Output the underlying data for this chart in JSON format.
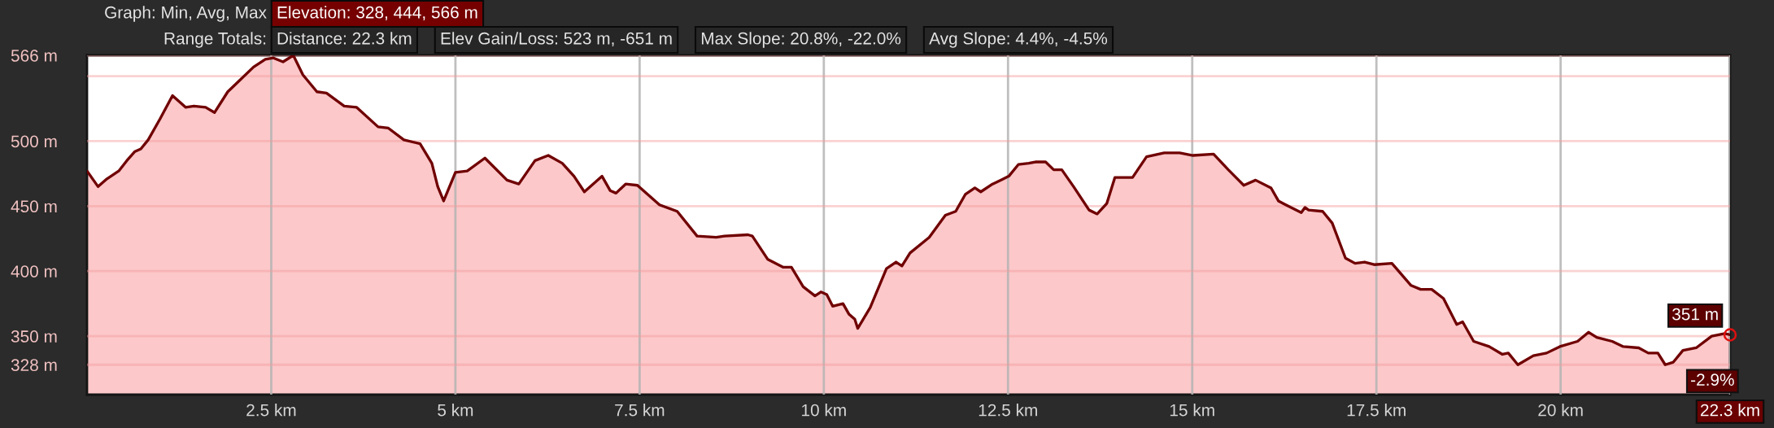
{
  "chart_data": {
    "type": "area",
    "color": "#700000",
    "x": [
      0,
      0.15,
      0.27,
      0.43,
      0.54,
      0.65,
      0.73,
      0.83,
      0.99,
      1.16,
      1.34,
      1.45,
      1.61,
      1.73,
      1.91,
      2.04,
      2.26,
      2.42,
      2.53,
      2.66,
      2.8,
      2.93,
      3.12,
      3.25,
      3.49,
      3.66,
      3.95,
      4.09,
      4.3,
      4.52,
      4.68,
      4.76,
      4.84,
      5.0,
      5.16,
      5.4,
      5.7,
      5.86,
      6.08,
      6.26,
      6.45,
      6.61,
      6.75,
      6.99,
      7.1,
      7.18,
      7.31,
      7.47,
      7.77,
      8.01,
      8.28,
      8.54,
      8.65,
      8.97,
      9.03,
      9.24,
      9.45,
      9.56,
      9.72,
      9.88,
      9.96,
      10.04,
      10.12,
      10.26,
      10.34,
      10.42,
      10.46,
      10.63,
      10.85,
      10.98,
      11.06,
      11.17,
      11.43,
      11.65,
      11.79,
      11.92,
      12.05,
      12.13,
      12.29,
      12.4,
      12.51,
      12.64,
      12.78,
      12.88,
      13.01,
      13.12,
      13.23,
      13.39,
      13.6,
      13.71,
      13.84,
      13.95,
      14.19,
      14.38,
      14.62,
      14.83,
      15.01,
      15.29,
      15.49,
      15.7,
      15.86,
      16.07,
      16.17,
      16.27,
      16.48,
      16.53,
      16.58,
      16.77,
      16.9,
      17.08,
      17.21,
      17.34,
      17.47,
      17.71,
      17.97,
      18.1,
      18.25,
      18.41,
      18.59,
      18.67,
      18.82,
      19.03,
      19.21,
      19.29,
      19.42,
      19.63,
      19.81,
      19.99,
      20.23,
      20.38,
      20.49,
      20.7,
      20.85,
      21.06,
      21.19,
      21.32,
      21.42,
      21.53,
      21.66,
      21.84,
      22.05,
      22.23,
      22.3
    ],
    "values": [
      477,
      465,
      471,
      477,
      485,
      492,
      494,
      501,
      517,
      535,
      526,
      527,
      526,
      522,
      538,
      545,
      557,
      563,
      564,
      561,
      566,
      551,
      538,
      537,
      527,
      526,
      511,
      510,
      501,
      498,
      483,
      465,
      454,
      476,
      477,
      487,
      470,
      467,
      485,
      489,
      483,
      473,
      461,
      473,
      462,
      460,
      467,
      466,
      451,
      446,
      427,
      426,
      427,
      428,
      427,
      409,
      403,
      403,
      388,
      381,
      384,
      382,
      373,
      375,
      367,
      363,
      356,
      372,
      402,
      407,
      404,
      414,
      426,
      443,
      446,
      459,
      464,
      461,
      467,
      470,
      473,
      482,
      483,
      484,
      484,
      478,
      478,
      465,
      447,
      444,
      452,
      472,
      472,
      488,
      491,
      491,
      489,
      490,
      478,
      466,
      470,
      464,
      454,
      451,
      445,
      449,
      447,
      446,
      437,
      410,
      406,
      407,
      405,
      406,
      389,
      386,
      386,
      379,
      359,
      361,
      346,
      342,
      336,
      337,
      328,
      335,
      337,
      342,
      346,
      353,
      349,
      346,
      342,
      341,
      337,
      337,
      328,
      330,
      339,
      341,
      350,
      352,
      351
    ],
    "xlim": [
      0,
      22.3
    ],
    "xticks": [
      {
        "value": 2.5,
        "label": "2.5 km"
      },
      {
        "value": 5,
        "label": "5 km"
      },
      {
        "value": 7.5,
        "label": "7.5 km"
      },
      {
        "value": 10,
        "label": "10 km"
      },
      {
        "value": 12.5,
        "label": "12.5 km"
      },
      {
        "value": 15,
        "label": "15 km"
      },
      {
        "value": 17.5,
        "label": "17.5 km"
      },
      {
        "value": 20,
        "label": "20 km"
      },
      {
        "value": 22.3,
        "label": "22.3 km"
      }
    ],
    "ylim": [
      305,
      566
    ],
    "yticks": [
      {
        "value": 328,
        "label": "328 m"
      },
      {
        "value": 350,
        "label": "350 m"
      },
      {
        "value": 400,
        "label": "400 m"
      },
      {
        "value": 450,
        "label": "450 m"
      },
      {
        "value": 500,
        "label": "500 m"
      },
      {
        "value": 550,
        "label": null
      },
      {
        "value": 566,
        "label": "566 m"
      }
    ],
    "grid": true,
    "annotations": [
      "Graph: Min, Avg, Max",
      "Elevation: 328, 444, 566 m",
      "Range Totals:",
      "Distance: 22.3 km",
      "Elev Gain/Loss: 523 m, -651 m",
      "Max Slope: 20.8%, -22.0%",
      "Avg Slope: 4.4%, -4.5%",
      {
        "text": "351 m",
        "x": 22.3,
        "y": 351
      },
      {
        "text": "-2.9%",
        "x": 22.3,
        "y": 351
      }
    ]
  }
}
